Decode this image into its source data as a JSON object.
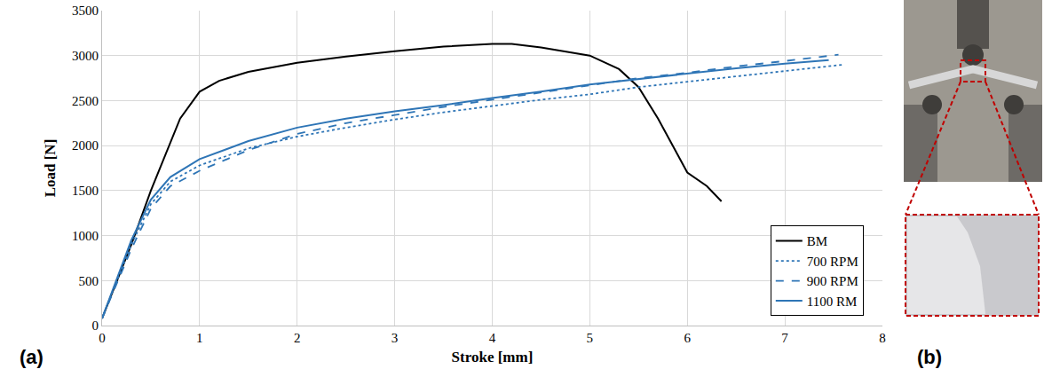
{
  "chart_data": {
    "type": "line",
    "x_label": "Stroke [mm]",
    "y_label": "Load [N]",
    "xlim": [
      0,
      8
    ],
    "xticks": [
      0,
      1,
      2,
      3,
      4,
      5,
      6,
      7,
      8
    ],
    "ylim": [
      0,
      3500
    ],
    "yticks": [
      0,
      500,
      1000,
      1500,
      2000,
      2500,
      3000,
      3500
    ],
    "grid": true,
    "legend": "lower right",
    "annotations": [
      "(a)",
      "(b)"
    ],
    "series": [
      {
        "name": "BM",
        "color": "#000000",
        "line_style": "solid",
        "x": [
          0,
          0.3,
          0.5,
          0.8,
          1.0,
          1.2,
          1.5,
          2.0,
          2.5,
          3.0,
          3.5,
          4.0,
          4.2,
          4.5,
          5.0,
          5.3,
          5.5,
          5.7,
          5.9,
          6.0,
          6.2,
          6.35
        ],
        "values": [
          80,
          900,
          1500,
          2300,
          2600,
          2720,
          2820,
          2920,
          2990,
          3050,
          3100,
          3130,
          3130,
          3090,
          3000,
          2850,
          2650,
          2300,
          1900,
          1700,
          1550,
          1380
        ]
      },
      {
        "name": "700 RPM",
        "color": "#2e75b6",
        "line_style": "dot",
        "x": [
          0,
          0.3,
          0.5,
          0.7,
          1.0,
          1.5,
          2.0,
          2.5,
          3.0,
          3.5,
          4.0,
          4.5,
          5.0,
          5.5,
          6.0,
          6.5,
          7.0,
          7.6
        ],
        "values": [
          80,
          900,
          1350,
          1600,
          1780,
          1970,
          2100,
          2200,
          2290,
          2370,
          2440,
          2510,
          2570,
          2650,
          2710,
          2770,
          2830,
          2900
        ]
      },
      {
        "name": "900 RPM",
        "color": "#2e75b6",
        "line_style": "dash",
        "x": [
          0,
          0.3,
          0.5,
          0.7,
          1.0,
          1.5,
          2.0,
          2.5,
          3.0,
          3.5,
          4.0,
          4.5,
          5.0,
          5.5,
          6.0,
          6.5,
          7.0,
          7.55
        ],
        "values": [
          80,
          850,
          1300,
          1550,
          1720,
          1950,
          2130,
          2250,
          2340,
          2430,
          2510,
          2590,
          2670,
          2750,
          2810,
          2880,
          2940,
          3010
        ]
      },
      {
        "name": "1100 RM",
        "color": "#2e75b6",
        "line_style": "solid",
        "x": [
          0,
          0.3,
          0.5,
          0.7,
          1.0,
          1.5,
          2.0,
          2.5,
          3.0,
          3.5,
          4.0,
          4.5,
          5.0,
          5.5,
          6.0,
          6.5,
          7.0,
          7.45
        ],
        "values": [
          80,
          950,
          1400,
          1650,
          1850,
          2050,
          2200,
          2300,
          2380,
          2450,
          2530,
          2600,
          2680,
          2740,
          2800,
          2860,
          2910,
          2950
        ]
      }
    ]
  }
}
